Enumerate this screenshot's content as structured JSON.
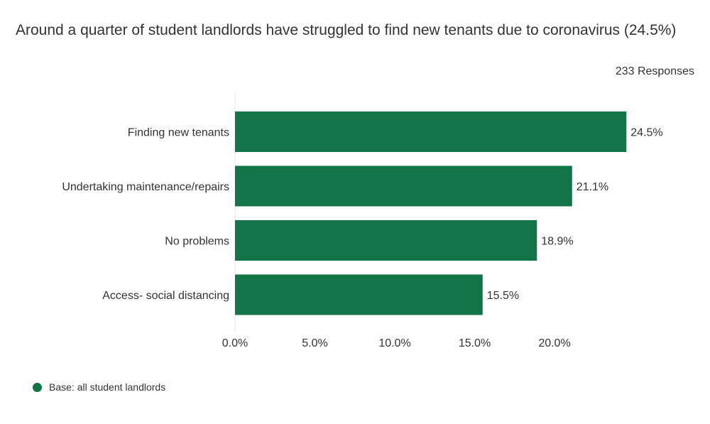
{
  "chart_data": {
    "type": "bar",
    "orientation": "horizontal",
    "title": "Around a quarter of student landlords have struggled to find new tenants due to coronavirus (24.5%)",
    "subtitle": "233 Responses",
    "categories": [
      "Finding new tenants",
      "Undertaking maintenance/repairs",
      "No problems",
      "Access- social distancing"
    ],
    "series": [
      {
        "name": "Base: all student landlords",
        "values": [
          24.5,
          21.1,
          18.9,
          15.5
        ],
        "value_labels": [
          "24.5%",
          "21.1%",
          "18.9%",
          "15.5%"
        ],
        "color": "#127447"
      }
    ],
    "xticks": [
      0,
      5,
      10,
      15,
      20
    ],
    "xtick_labels": [
      "0.0%",
      "5.0%",
      "10.0%",
      "15.0%",
      "20.0%"
    ],
    "xlim": [
      0,
      25
    ],
    "grid": false,
    "legend": "bottom-left"
  }
}
